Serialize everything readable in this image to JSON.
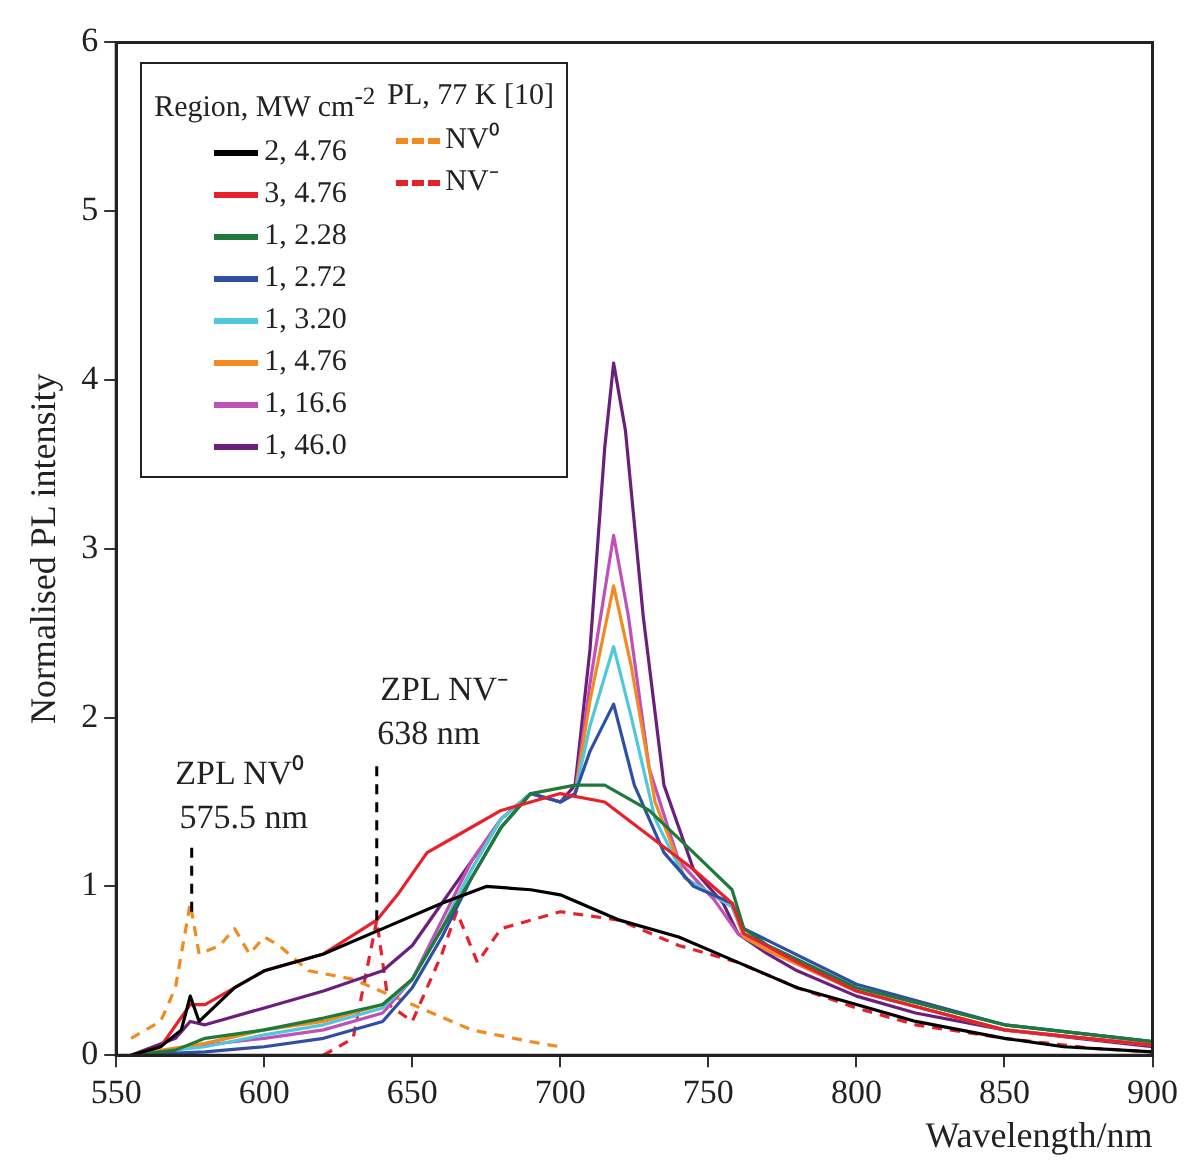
{
  "chart_data": {
    "type": "line",
    "xlabel": "Wavelength/nm",
    "ylabel": "Normalised PL intensity",
    "legend_title": "Region, MW cm$^{-2}$",
    "annotations": [
      "PL, 77 K [10]"
    ],
    "xlim": [
      550,
      900
    ],
    "xticks": [
      550,
      600,
      650,
      700,
      750,
      800,
      850,
      900
    ],
    "ylim": [
      0,
      6
    ],
    "yticks": [
      0,
      1,
      2,
      3,
      4,
      5,
      6
    ],
    "grid": false,
    "legend": "top left",
    "marker": "none",
    "line_style": "solid",
    "ref_lines": [
      {
        "axis": "x",
        "value": 575.5,
        "label": "ZPL NV⁰\n575.5 nm",
        "color": "#000000",
        "line_style": "dashed"
      },
      {
        "axis": "x",
        "value": 638,
        "label": "ZPL NV⁻\n638 nm",
        "color": "#000000",
        "line_style": "dashed"
      }
    ],
    "series": [
      {
        "name": "2, 4.76",
        "color": "#000000",
        "x": [
          555,
          565,
          572,
          575,
          578,
          590,
          600,
          620,
          640,
          660,
          675,
          690,
          700,
          720,
          740,
          760,
          780,
          800,
          820,
          850,
          870,
          900
        ],
        "values": [
          0,
          0.05,
          0.15,
          0.35,
          0.2,
          0.4,
          0.5,
          0.6,
          0.75,
          0.9,
          1.0,
          0.98,
          0.95,
          0.8,
          0.7,
          0.55,
          0.4,
          0.3,
          0.2,
          0.1,
          0.05,
          0.02
        ]
      },
      {
        "name": "3, 4.76",
        "color": "#e8202a",
        "x": [
          555,
          565,
          575,
          580,
          600,
          620,
          638,
          645,
          655,
          665,
          680,
          690,
          700,
          715,
          730,
          745,
          758,
          762,
          780,
          800,
          850,
          900
        ],
        "values": [
          0,
          0.05,
          0.3,
          0.3,
          0.5,
          0.6,
          0.8,
          0.95,
          1.2,
          1.3,
          1.45,
          1.5,
          1.55,
          1.5,
          1.3,
          1.1,
          0.9,
          0.72,
          0.55,
          0.38,
          0.15,
          0.06
        ]
      },
      {
        "name": "1, 2.28",
        "color": "#1f7a3a",
        "x": [
          555,
          570,
          580,
          600,
          620,
          640,
          650,
          660,
          670,
          680,
          690,
          705,
          715,
          730,
          745,
          758,
          762,
          770,
          800,
          850,
          900
        ],
        "values": [
          0,
          0.03,
          0.1,
          0.15,
          0.22,
          0.3,
          0.45,
          0.75,
          1.05,
          1.35,
          1.55,
          1.6,
          1.6,
          1.45,
          1.2,
          0.98,
          0.75,
          0.65,
          0.4,
          0.18,
          0.08
        ]
      },
      {
        "name": "1, 2.72",
        "color": "#2e4fa3",
        "x": [
          555,
          580,
          600,
          620,
          640,
          650,
          660,
          670,
          680,
          690,
          700,
          705,
          710,
          718,
          725,
          735,
          745,
          758,
          762,
          770,
          800,
          850,
          900
        ],
        "values": [
          0,
          0.02,
          0.05,
          0.1,
          0.2,
          0.4,
          0.7,
          1.05,
          1.35,
          1.55,
          1.5,
          1.55,
          1.8,
          2.08,
          1.6,
          1.2,
          1.0,
          0.9,
          0.75,
          0.68,
          0.42,
          0.18,
          0.08
        ]
      },
      {
        "name": "1, 3.20",
        "color": "#4fc8de",
        "x": [
          555,
          580,
          600,
          620,
          640,
          650,
          660,
          670,
          680,
          690,
          700,
          705,
          710,
          718,
          724,
          732,
          742,
          758,
          762,
          770,
          800,
          850,
          900
        ],
        "values": [
          0,
          0.05,
          0.12,
          0.18,
          0.28,
          0.45,
          0.75,
          1.1,
          1.4,
          1.55,
          1.5,
          1.55,
          1.95,
          2.42,
          2.0,
          1.4,
          1.05,
          0.88,
          0.72,
          0.65,
          0.4,
          0.18,
          0.08
        ]
      },
      {
        "name": "1, 4.76",
        "color": "#f28a1f",
        "x": [
          555,
          580,
          600,
          620,
          640,
          650,
          660,
          670,
          680,
          690,
          700,
          705,
          710,
          718,
          724,
          732,
          742,
          758,
          762,
          770,
          800,
          850,
          900
        ],
        "values": [
          0,
          0.07,
          0.15,
          0.2,
          0.3,
          0.45,
          0.75,
          1.1,
          1.4,
          1.55,
          1.5,
          1.55,
          2.1,
          2.78,
          2.3,
          1.5,
          1.05,
          0.88,
          0.7,
          0.62,
          0.38,
          0.15,
          0.06
        ]
      },
      {
        "name": "1, 16.6",
        "color": "#c050b8",
        "x": [
          555,
          575,
          600,
          620,
          640,
          650,
          660,
          670,
          680,
          690,
          700,
          705,
          710,
          718,
          723,
          730,
          740,
          752,
          760,
          770,
          800,
          850,
          900
        ],
        "values": [
          0,
          0.05,
          0.1,
          0.15,
          0.25,
          0.45,
          0.8,
          1.15,
          1.4,
          1.55,
          1.5,
          1.55,
          2.2,
          3.08,
          2.6,
          1.7,
          1.15,
          0.92,
          0.72,
          0.62,
          0.38,
          0.15,
          0.06
        ]
      },
      {
        "name": "1, 46.0",
        "color": "#6a1f7a",
        "x": [
          555,
          570,
          575,
          580,
          600,
          620,
          640,
          650,
          660,
          670,
          680,
          690,
          700,
          705,
          710,
          715,
          718,
          722,
          728,
          735,
          745,
          755,
          760,
          770,
          780,
          800,
          820,
          850,
          875,
          900
        ],
        "values": [
          0,
          0.1,
          0.2,
          0.18,
          0.28,
          0.38,
          0.5,
          0.65,
          0.9,
          1.15,
          1.4,
          1.55,
          1.5,
          1.6,
          2.4,
          3.6,
          4.1,
          3.7,
          2.6,
          1.6,
          1.1,
          0.9,
          0.72,
          0.6,
          0.5,
          0.35,
          0.25,
          0.15,
          0.1,
          0.05
        ]
      },
      {
        "name": "NV⁰",
        "color": "#f28a1f",
        "line_style": "dashed",
        "x": [
          555,
          565,
          570,
          575,
          578,
          585,
          590,
          595,
          600,
          605,
          615,
          630,
          650,
          670,
          690,
          700
        ],
        "values": [
          0.1,
          0.2,
          0.4,
          0.9,
          0.6,
          0.65,
          0.75,
          0.6,
          0.7,
          0.65,
          0.5,
          0.45,
          0.3,
          0.15,
          0.08,
          0.05
        ]
      },
      {
        "name": "NV⁻",
        "color": "#e8202a",
        "line_style": "dashed",
        "x": [
          620,
          630,
          638,
          642,
          650,
          660,
          665,
          672,
          680,
          700,
          720,
          740,
          760,
          780,
          800,
          820,
          850,
          880,
          900
        ],
        "values": [
          0,
          0.1,
          0.8,
          0.3,
          0.2,
          0.6,
          0.85,
          0.55,
          0.75,
          0.85,
          0.8,
          0.65,
          0.55,
          0.4,
          0.28,
          0.18,
          0.1,
          0.04,
          0.02
        ]
      }
    ]
  }
}
